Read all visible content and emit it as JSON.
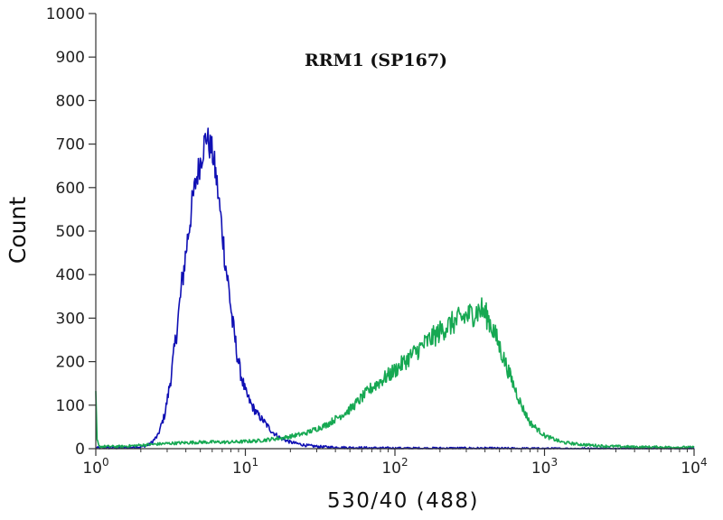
{
  "chart_data": {
    "type": "line",
    "title": "RRM1 (SP167)",
    "xlabel": "530/40 (488)",
    "ylabel": "Count",
    "x_scale": "log",
    "xlim": [
      1,
      10000
    ],
    "ylim": [
      0,
      1000
    ],
    "x_ticks": [
      {
        "value": 1,
        "base": "10",
        "exp": "0"
      },
      {
        "value": 10,
        "base": "10",
        "exp": "1"
      },
      {
        "value": 100,
        "base": "10",
        "exp": "2"
      },
      {
        "value": 1000,
        "base": "10",
        "exp": "3"
      },
      {
        "value": 10000,
        "base": "10",
        "exp": "4"
      }
    ],
    "y_ticks": [
      0,
      100,
      200,
      300,
      400,
      500,
      600,
      700,
      800,
      900,
      1000
    ],
    "grid": false,
    "legend": "none",
    "series": [
      {
        "color": "#1010b4",
        "x": [
          1,
          1.5,
          2,
          2.3,
          2.6,
          2.9,
          3.2,
          3.5,
          3.8,
          4.1,
          4.4,
          4.7,
          5.0,
          5.3,
          5.5,
          5.7,
          5.9,
          6.1,
          6.4,
          6.7,
          7.0,
          7.4,
          7.8,
          8.2,
          8.7,
          9.2,
          10,
          11,
          12,
          13.5,
          15,
          17,
          20,
          25,
          30,
          40,
          60,
          100,
          300,
          1000,
          10000
        ],
        "y": [
          2,
          2,
          4,
          10,
          30,
          80,
          170,
          280,
          390,
          480,
          560,
          620,
          660,
          700,
          720,
          700,
          690,
          670,
          620,
          560,
          500,
          420,
          360,
          290,
          230,
          180,
          130,
          100,
          80,
          60,
          40,
          25,
          15,
          8,
          5,
          3,
          2,
          1,
          1,
          0,
          0
        ]
      },
      {
        "color": "#16a852",
        "x": [
          1,
          1.02,
          1.05,
          1.1,
          1.5,
          2,
          3,
          5,
          8,
          12,
          18,
          25,
          35,
          50,
          70,
          100,
          130,
          170,
          220,
          280,
          330,
          380,
          420,
          470,
          530,
          600,
          700,
          800,
          1000,
          1300,
          1700,
          2500,
          4000,
          10000
        ],
        "y": [
          120,
          20,
          5,
          5,
          5,
          8,
          12,
          15,
          15,
          18,
          25,
          35,
          55,
          90,
          140,
          180,
          215,
          250,
          280,
          300,
          310,
          320,
          300,
          260,
          210,
          160,
          100,
          60,
          30,
          15,
          10,
          6,
          4,
          3
        ]
      }
    ]
  }
}
